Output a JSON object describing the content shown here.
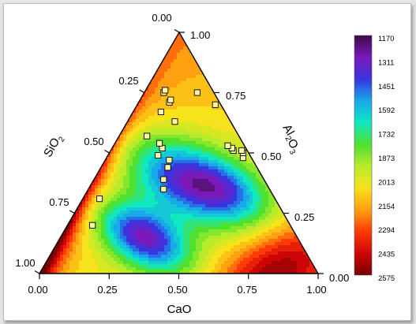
{
  "chart_data": {
    "type": "ternary-contour",
    "axes": {
      "bottom": {
        "label": "CaO",
        "ticks": [
          "0.00",
          "0.25",
          "0.50",
          "0.75",
          "1.00"
        ]
      },
      "left": {
        "label": "SiO2",
        "ticks": [
          "0.00",
          "0.25",
          "0.50",
          "0.75",
          "1.00"
        ]
      },
      "right": {
        "label": "Al2O3",
        "ticks": [
          "0.00",
          "0.25",
          "0.50",
          "0.75",
          "1.00"
        ]
      }
    },
    "colorbar": {
      "levels": [
        1170,
        1311,
        1451,
        1592,
        1732,
        1873,
        2013,
        2154,
        2294,
        2435,
        2575
      ],
      "labels": [
        "1170",
        "1311",
        "1451",
        "1592",
        "1732",
        "1873",
        "2013",
        "2154",
        "2294",
        "2435",
        "2575"
      ],
      "colors": [
        "#3d0a45",
        "#7a19b8",
        "#3a34e0",
        "#17a9ea",
        "#10e8c0",
        "#4fe030",
        "#b8ec2a",
        "#f8e21c",
        "#ffa010",
        "#ff3a08",
        "#cc0606",
        "#7a0000"
      ]
    },
    "points": [
      {
        "cao": 0.2,
        "sio2": 0.71,
        "al2o3": 0.09
      },
      {
        "cao": 0.31,
        "sio2": 0.63,
        "al2o3": 0.06
      },
      {
        "cao": 0.35,
        "sio2": 0.38,
        "al2o3": 0.27
      },
      {
        "cao": 0.39,
        "sio2": 0.36,
        "al2o3": 0.25
      },
      {
        "cao": 0.44,
        "sio2": 0.32,
        "al2o3": 0.24
      },
      {
        "cao": 0.47,
        "sio2": 0.3,
        "al2o3": 0.23
      },
      {
        "cao": 0.52,
        "sio2": 0.3,
        "al2o3": 0.18
      },
      {
        "cao": 0.49,
        "sio2": 0.33,
        "al2o3": 0.18
      },
      {
        "cao": 0.54,
        "sio2": 0.3,
        "al2o3": 0.16
      },
      {
        "cao": 0.57,
        "sio2": 0.33,
        "al2o3": 0.1
      },
      {
        "cao": 0.63,
        "sio2": 0.2,
        "al2o3": 0.17
      },
      {
        "cao": 0.67,
        "sio2": 0.23,
        "al2o3": 0.1
      },
      {
        "cao": 0.71,
        "sio2": 0.18,
        "al2o3": 0.11
      },
      {
        "cao": 0.72,
        "sio2": 0.17,
        "al2o3": 0.11
      },
      {
        "cao": 0.75,
        "sio2": 0.18,
        "al2o3": 0.07
      },
      {
        "cao": 0.76,
        "sio2": 0.17,
        "al2o3": 0.07
      },
      {
        "cao": 0.75,
        "sio2": 0.06,
        "al2o3": 0.19
      },
      {
        "cao": 0.7,
        "sio2": 0.02,
        "al2o3": 0.28
      },
      {
        "cao": 0.51,
        "sio2": 0.05,
        "al2o3": 0.44
      },
      {
        "cao": 0.52,
        "sio2": 0.05,
        "al2o3": 0.43
      },
      {
        "cao": 0.48,
        "sio2": 0.03,
        "al2o3": 0.49
      },
      {
        "cao": 0.5,
        "sio2": 0.02,
        "al2o3": 0.48
      },
      {
        "cao": 0.51,
        "sio2": 0.02,
        "al2o3": 0.47
      },
      {
        "cao": 0.53,
        "sio2": 0.06,
        "al2o3": 0.41
      }
    ]
  }
}
